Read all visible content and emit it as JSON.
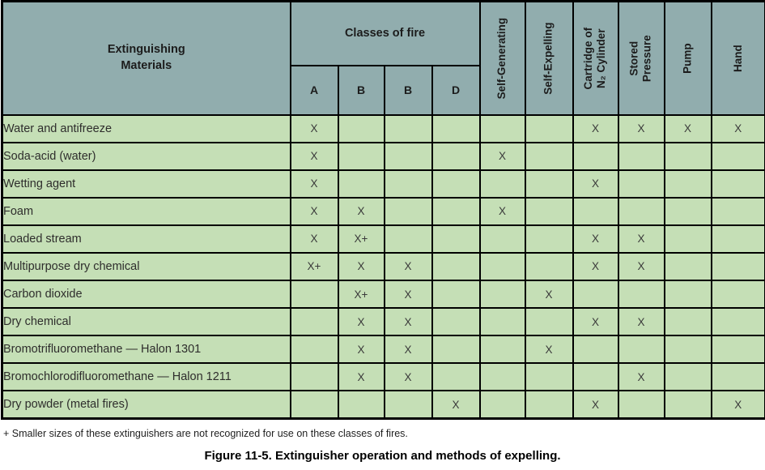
{
  "table": {
    "materials_header_lines": [
      "Extinguishing",
      "Materials"
    ],
    "classes_header": "Classes of fire",
    "class_columns": [
      "A",
      "B",
      "B",
      "D"
    ],
    "method_columns": [
      {
        "id": "self-generating",
        "lines": [
          "Self-Generating",
          ""
        ]
      },
      {
        "id": "self-expelling",
        "lines": [
          "Self-Expelling",
          ""
        ]
      },
      {
        "id": "cartridge-n2-cylinder",
        "lines": [
          "Cartridge of",
          "N₂ Cylinder"
        ]
      },
      {
        "id": "stored-pressure",
        "lines": [
          "Stored",
          "Pressure"
        ]
      },
      {
        "id": "pump",
        "lines": [
          "Pump",
          ""
        ]
      },
      {
        "id": "hand",
        "lines": [
          "Hand",
          ""
        ]
      }
    ],
    "rows": [
      {
        "label": "Water and antifreeze",
        "cells": [
          "X",
          "",
          "",
          "",
          "",
          "",
          "X",
          "X",
          "X",
          "X"
        ]
      },
      {
        "label": "Soda-acid (water)",
        "cells": [
          "X",
          "",
          "",
          "",
          "X",
          "",
          "",
          "",
          "",
          ""
        ]
      },
      {
        "label": "Wetting agent",
        "cells": [
          "X",
          "",
          "",
          "",
          "",
          "",
          "X",
          "",
          "",
          ""
        ]
      },
      {
        "label": "Foam",
        "cells": [
          "X",
          "X",
          "",
          "",
          "X",
          "",
          "",
          "",
          "",
          ""
        ]
      },
      {
        "label": "Loaded stream",
        "cells": [
          "X",
          "X+",
          "",
          "",
          "",
          "",
          "X",
          "X",
          "",
          ""
        ]
      },
      {
        "label": "Multipurpose dry chemical",
        "cells": [
          "X+",
          "X",
          "X",
          "",
          "",
          "",
          "X",
          "X",
          "",
          ""
        ]
      },
      {
        "label": "Carbon dioxide",
        "cells": [
          "",
          "X+",
          "X",
          "",
          "",
          "X",
          "",
          "",
          "",
          ""
        ]
      },
      {
        "label": "Dry chemical",
        "cells": [
          "",
          "X",
          "X",
          "",
          "",
          "",
          "X",
          "X",
          "",
          ""
        ]
      },
      {
        "label": "Bromotrifluoromethane — Halon 1301",
        "cells": [
          "",
          "X",
          "X",
          "",
          "",
          "X",
          "",
          "",
          "",
          ""
        ]
      },
      {
        "label": "Bromochlorodifluoromethane — Halon 1211",
        "cells": [
          "",
          "X",
          "X",
          "",
          "",
          "",
          "",
          "X",
          "",
          ""
        ]
      },
      {
        "label": "Dry powder (metal fires)",
        "cells": [
          "",
          "",
          "",
          "X",
          "",
          "",
          "X",
          "",
          "",
          "X"
        ]
      }
    ]
  },
  "footnote": "+ Smaller sizes of these extinguishers are not recognized for use on these classes of fires.",
  "caption": "Figure 11-5. Extinguisher operation and methods of expelling.",
  "colors": {
    "header_bg": "#91adae",
    "body_bg": "#c5dfb6",
    "border": "#000000"
  }
}
